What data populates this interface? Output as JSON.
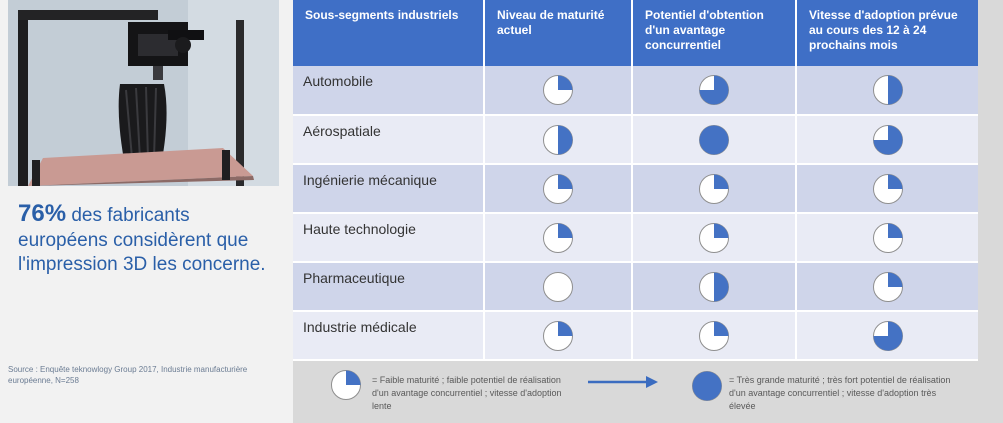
{
  "stat": {
    "number": "76%",
    "text": " des fabricants européens considèrent que l'impression 3D les concerne."
  },
  "source": "Source : Enquête teknowlogy Group 2017, Industrie manufacturière européenne, N=258",
  "table": {
    "headers": [
      "Sous-segments industriels",
      "Niveau de maturité actuel",
      "Potentiel d'obtention d'un avantage concurrentiel",
      "Vitesse d'adoption prévue au cours des 12 à 24 prochains mois"
    ],
    "rows": [
      {
        "segment": "Automobile",
        "levels": [
          0.25,
          0.75,
          0.5
        ]
      },
      {
        "segment": "Aérospatiale",
        "levels": [
          0.5,
          1.0,
          0.75
        ]
      },
      {
        "segment": "Ingénierie mécanique",
        "levels": [
          0.25,
          0.25,
          0.25
        ]
      },
      {
        "segment": "Haute technologie",
        "levels": [
          0.25,
          0.25,
          0.25
        ]
      },
      {
        "segment": "Pharmaceutique",
        "levels": [
          0.0,
          0.5,
          0.25
        ]
      },
      {
        "segment": "Industrie médicale",
        "levels": [
          0.25,
          0.25,
          0.75
        ]
      }
    ]
  },
  "legend": {
    "low_level": 0.25,
    "low_text": "= Faible maturité ; faible potentiel de réalisation d'un avantage concurrentiel ; vitesse d'adoption lente",
    "high_level": 1.0,
    "high_text": "= Très grande maturité ; très fort potentiel de réalisation d'un avantage concurrentiel ; vitesse d'adoption très élevée"
  },
  "colors": {
    "header": "#3f6fc6",
    "pie_fill": "#4472c4",
    "accent_text": "#2a5fa8"
  }
}
